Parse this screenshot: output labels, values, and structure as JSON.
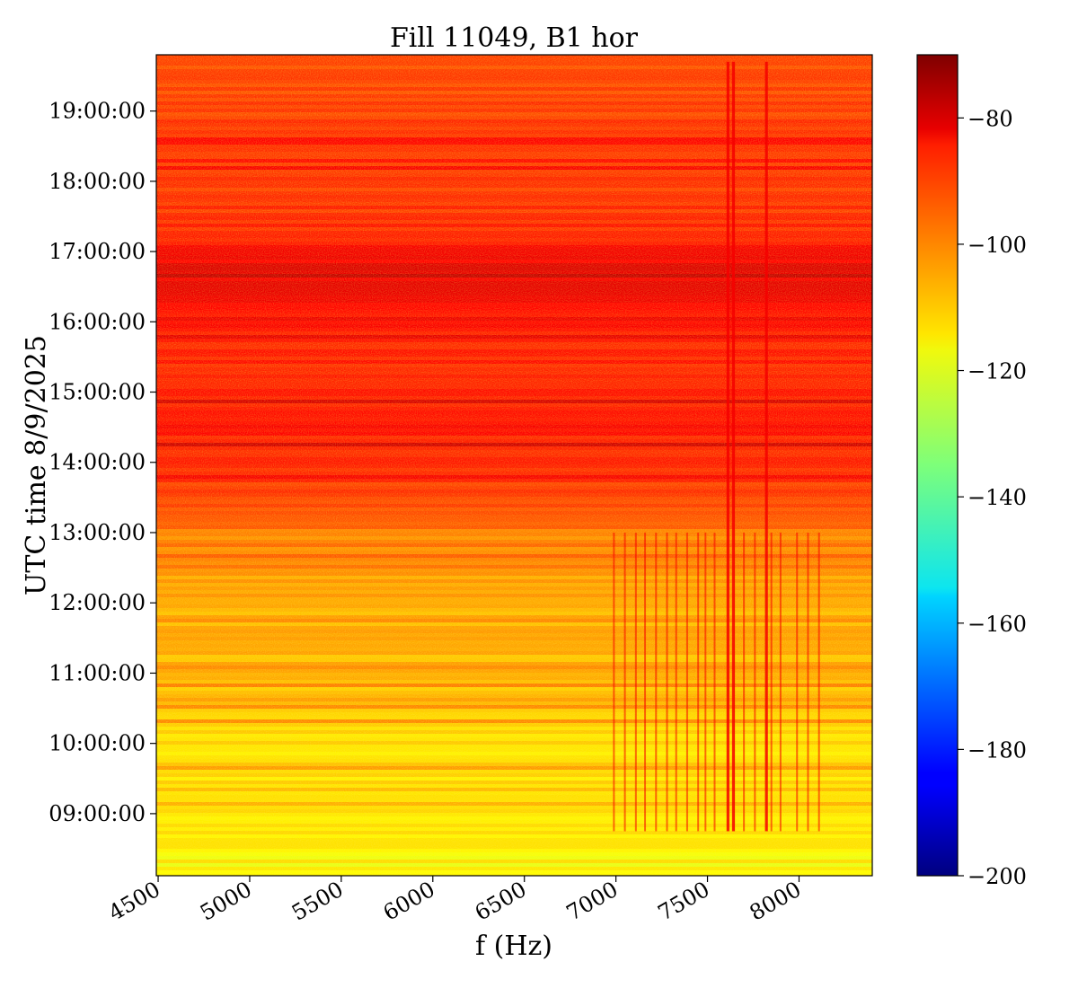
{
  "chart_data": {
    "type": "heatmap",
    "title": "Fill 11049, B1 hor",
    "xlabel": "f (Hz)",
    "ylabel": "UTC time 8/9/2025",
    "xlim": [
      4490,
      8400
    ],
    "ylim": [
      "08:07:00",
      "19:48:00"
    ],
    "x_ticks": [
      {
        "value": 4500,
        "label": "4500"
      },
      {
        "value": 5000,
        "label": "5000"
      },
      {
        "value": 5500,
        "label": "5500"
      },
      {
        "value": 6000,
        "label": "6000"
      },
      {
        "value": 6500,
        "label": "6500"
      },
      {
        "value": 7000,
        "label": "7000"
      },
      {
        "value": 7500,
        "label": "7500"
      },
      {
        "value": 8000,
        "label": "8000"
      }
    ],
    "y_ticks": [
      {
        "value": "09:00:00",
        "label": "09:00:00"
      },
      {
        "value": "10:00:00",
        "label": "10:00:00"
      },
      {
        "value": "11:00:00",
        "label": "11:00:00"
      },
      {
        "value": "12:00:00",
        "label": "12:00:00"
      },
      {
        "value": "13:00:00",
        "label": "13:00:00"
      },
      {
        "value": "14:00:00",
        "label": "14:00:00"
      },
      {
        "value": "15:00:00",
        "label": "15:00:00"
      },
      {
        "value": "16:00:00",
        "label": "16:00:00"
      },
      {
        "value": "17:00:00",
        "label": "17:00:00"
      },
      {
        "value": "18:00:00",
        "label": "18:00:00"
      },
      {
        "value": "19:00:00",
        "label": "19:00:00"
      }
    ],
    "colorbar": {
      "colormap": "jet",
      "range": [
        -200,
        -70
      ],
      "ticks": [
        {
          "value": -80,
          "label": "−80"
        },
        {
          "value": -100,
          "label": "−100"
        },
        {
          "value": -120,
          "label": "−120"
        },
        {
          "value": -140,
          "label": "−140"
        },
        {
          "value": -160,
          "label": "−160"
        },
        {
          "value": -180,
          "label": "−180"
        },
        {
          "value": -200,
          "label": "−200"
        }
      ]
    },
    "approx_level_by_time": [
      {
        "time": "08:10:00",
        "value": -120
      },
      {
        "time": "09:00:00",
        "value": -115
      },
      {
        "time": "10:00:00",
        "value": -114
      },
      {
        "time": "10:35:00",
        "value": -110
      },
      {
        "time": "12:00:00",
        "value": -108
      },
      {
        "time": "13:00:00",
        "value": -102
      },
      {
        "time": "13:30:00",
        "value": -93
      },
      {
        "time": "14:30:00",
        "value": -88
      },
      {
        "time": "15:30:00",
        "value": -90
      },
      {
        "time": "16:30:00",
        "value": -84
      },
      {
        "time": "17:00:00",
        "value": -83
      },
      {
        "time": "17:15:00",
        "value": -91
      },
      {
        "time": "18:30:00",
        "value": -93
      },
      {
        "time": "19:45:00",
        "value": -95
      }
    ],
    "spectral_lines": {
      "frequencies_hz": [
        6990,
        7050,
        7110,
        7160,
        7220,
        7280,
        7330,
        7390,
        7450,
        7490,
        7540,
        7610,
        7640,
        7700,
        7760,
        7820,
        7850,
        7900,
        7990,
        8050,
        8110
      ],
      "strong_frequencies_hz": [
        7610,
        7640,
        7820
      ],
      "start_time": "08:45:00",
      "end_time": "13:00:00",
      "strong_end_time": "19:42:00",
      "line_value": -85
    },
    "grid": false
  }
}
